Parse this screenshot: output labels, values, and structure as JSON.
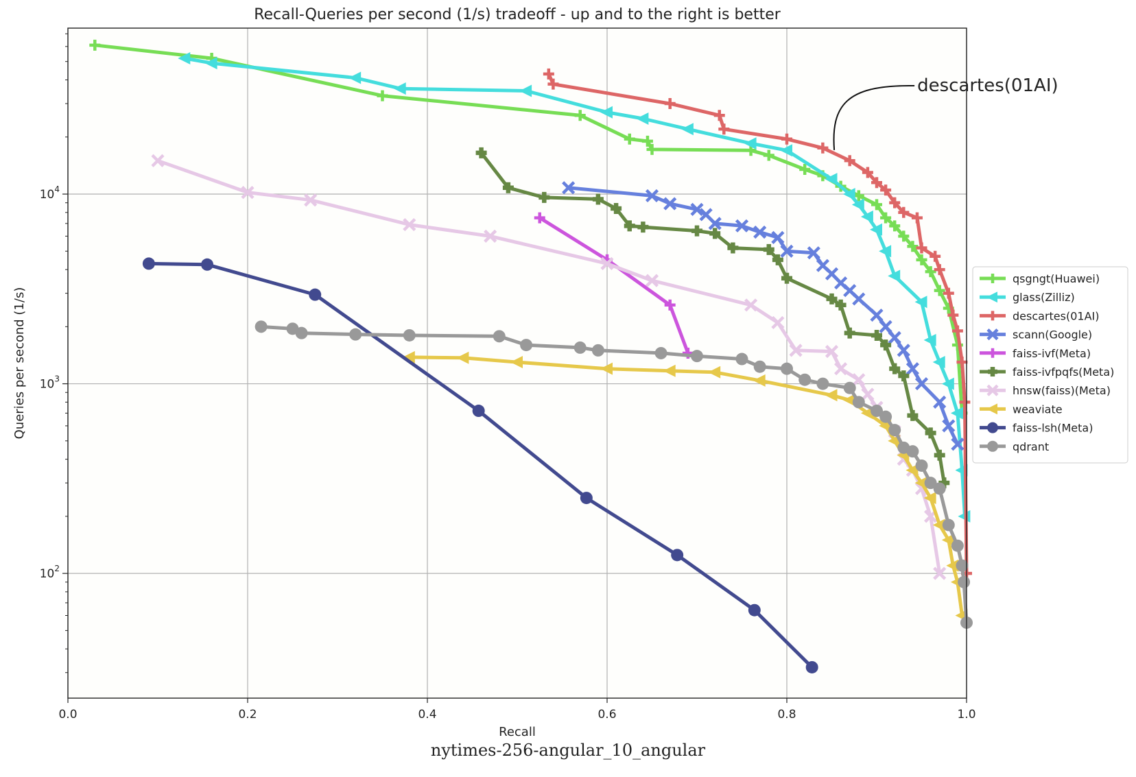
{
  "caption": "nytimes-256-angular_10_angular",
  "chart_data": {
    "type": "line",
    "title": "Recall-Queries per second (1/s) tradeoff - up and to the right is better",
    "xlabel": "Recall",
    "ylabel": "Queries per second (1/s)",
    "xlim": [
      0.0,
      1.0
    ],
    "ylim": [
      22,
      75000
    ],
    "yscale": "log",
    "grid": true,
    "legend_position": "right",
    "x_ticks": [
      {
        "value": 0.0,
        "label": "0.0"
      },
      {
        "value": 0.2,
        "label": "0.2"
      },
      {
        "value": 0.4,
        "label": "0.4"
      },
      {
        "value": 0.6,
        "label": "0.6"
      },
      {
        "value": 0.8,
        "label": "0.8"
      },
      {
        "value": 1.0,
        "label": "1.0"
      }
    ],
    "y_ticks": [
      {
        "value": 100,
        "base": "10",
        "exp": "2"
      },
      {
        "value": 1000,
        "base": "10",
        "exp": "3"
      },
      {
        "value": 10000,
        "base": "10",
        "exp": "4"
      }
    ],
    "annotation": {
      "text": "descartes(01AI)",
      "x": 0.852,
      "y": 16500
    },
    "series": [
      {
        "name": "qsgngt(Huawei)",
        "color": "#77dd55",
        "marker": "plus",
        "points": [
          [
            0.03,
            61000
          ],
          [
            0.16,
            52000
          ],
          [
            0.35,
            33000
          ],
          [
            0.57,
            26000
          ],
          [
            0.625,
            19500
          ],
          [
            0.645,
            19000
          ],
          [
            0.65,
            17200
          ],
          [
            0.76,
            17000
          ],
          [
            0.78,
            16000
          ],
          [
            0.82,
            13500
          ],
          [
            0.84,
            12500
          ],
          [
            0.86,
            11000
          ],
          [
            0.88,
            9800
          ],
          [
            0.9,
            8800
          ],
          [
            0.91,
            7500
          ],
          [
            0.92,
            6800
          ],
          [
            0.93,
            6000
          ],
          [
            0.94,
            5300
          ],
          [
            0.95,
            4500
          ],
          [
            0.96,
            3900
          ],
          [
            0.97,
            3100
          ],
          [
            0.98,
            2500
          ],
          [
            0.99,
            1600
          ],
          [
            0.995,
            700
          ]
        ]
      },
      {
        "name": "glass(Zilliz)",
        "color": "#44dddd",
        "marker": "triangle-left",
        "points": [
          [
            0.13,
            52000
          ],
          [
            0.16,
            49000
          ],
          [
            0.32,
            41000
          ],
          [
            0.37,
            36000
          ],
          [
            0.51,
            35000
          ],
          [
            0.6,
            27000
          ],
          [
            0.64,
            25000
          ],
          [
            0.69,
            22000
          ],
          [
            0.76,
            18500
          ],
          [
            0.8,
            17000
          ],
          [
            0.85,
            12000
          ],
          [
            0.87,
            10000
          ],
          [
            0.88,
            8800
          ],
          [
            0.89,
            7600
          ],
          [
            0.9,
            6500
          ],
          [
            0.91,
            5000
          ],
          [
            0.92,
            3700
          ],
          [
            0.95,
            2700
          ],
          [
            0.96,
            1700
          ],
          [
            0.97,
            1300
          ],
          [
            0.98,
            1000
          ],
          [
            0.99,
            700
          ],
          [
            0.995,
            350
          ],
          [
            0.998,
            200
          ]
        ]
      },
      {
        "name": "descartes(01AI)",
        "color": "#dd6666",
        "marker": "plus",
        "points": [
          [
            0.535,
            43000
          ],
          [
            0.54,
            38000
          ],
          [
            0.67,
            30000
          ],
          [
            0.725,
            26000
          ],
          [
            0.73,
            22000
          ],
          [
            0.8,
            19500
          ],
          [
            0.84,
            17500
          ],
          [
            0.87,
            15000
          ],
          [
            0.89,
            13000
          ],
          [
            0.9,
            11500
          ],
          [
            0.91,
            10500
          ],
          [
            0.92,
            9000
          ],
          [
            0.93,
            8000
          ],
          [
            0.945,
            7500
          ],
          [
            0.95,
            5200
          ],
          [
            0.965,
            4700
          ],
          [
            0.97,
            4000
          ],
          [
            0.98,
            3000
          ],
          [
            0.985,
            2300
          ],
          [
            0.99,
            1900
          ],
          [
            0.995,
            1300
          ],
          [
            0.998,
            800
          ],
          [
            1.0,
            100
          ]
        ]
      },
      {
        "name": "scann(Google)",
        "color": "#6680dd",
        "marker": "x",
        "points": [
          [
            0.557,
            10800
          ],
          [
            0.65,
            9800
          ],
          [
            0.67,
            8900
          ],
          [
            0.7,
            8300
          ],
          [
            0.71,
            7800
          ],
          [
            0.72,
            7000
          ],
          [
            0.75,
            6800
          ],
          [
            0.77,
            6300
          ],
          [
            0.79,
            5900
          ],
          [
            0.8,
            5000
          ],
          [
            0.83,
            4900
          ],
          [
            0.84,
            4200
          ],
          [
            0.85,
            3800
          ],
          [
            0.86,
            3400
          ],
          [
            0.87,
            3100
          ],
          [
            0.88,
            2800
          ],
          [
            0.9,
            2300
          ],
          [
            0.91,
            2000
          ],
          [
            0.92,
            1750
          ],
          [
            0.93,
            1500
          ],
          [
            0.94,
            1200
          ],
          [
            0.95,
            1000
          ],
          [
            0.97,
            800
          ],
          [
            0.98,
            600
          ],
          [
            0.99,
            480
          ]
        ]
      },
      {
        "name": "faiss-ivf(Meta)",
        "color": "#cc55dd",
        "marker": "plus",
        "points": [
          [
            0.525,
            7500
          ],
          [
            0.6,
            4500
          ],
          [
            0.67,
            2600
          ],
          [
            0.69,
            1450
          ]
        ]
      },
      {
        "name": "faiss-ivfpqfs(Meta)",
        "color": "#668844",
        "marker": "plus-heavy",
        "points": [
          [
            0.46,
            16500
          ],
          [
            0.49,
            10800
          ],
          [
            0.53,
            9600
          ],
          [
            0.59,
            9400
          ],
          [
            0.61,
            8400
          ],
          [
            0.625,
            6800
          ],
          [
            0.64,
            6700
          ],
          [
            0.7,
            6400
          ],
          [
            0.72,
            6200
          ],
          [
            0.74,
            5200
          ],
          [
            0.78,
            5100
          ],
          [
            0.79,
            4500
          ],
          [
            0.8,
            3600
          ],
          [
            0.85,
            2800
          ],
          [
            0.86,
            2600
          ],
          [
            0.87,
            1850
          ],
          [
            0.9,
            1800
          ],
          [
            0.91,
            1600
          ],
          [
            0.92,
            1200
          ],
          [
            0.93,
            1100
          ],
          [
            0.94,
            680
          ],
          [
            0.96,
            550
          ],
          [
            0.97,
            420
          ],
          [
            0.975,
            300
          ]
        ]
      },
      {
        "name": "hnsw(faiss)(Meta)",
        "color": "#e6c8e6",
        "marker": "x",
        "points": [
          [
            0.1,
            15000
          ],
          [
            0.2,
            10200
          ],
          [
            0.27,
            9300
          ],
          [
            0.38,
            6900
          ],
          [
            0.47,
            6000
          ],
          [
            0.6,
            4300
          ],
          [
            0.65,
            3500
          ],
          [
            0.76,
            2600
          ],
          [
            0.79,
            2100
          ],
          [
            0.81,
            1500
          ],
          [
            0.85,
            1480
          ],
          [
            0.86,
            1200
          ],
          [
            0.88,
            1050
          ],
          [
            0.89,
            880
          ],
          [
            0.9,
            750
          ],
          [
            0.92,
            560
          ],
          [
            0.93,
            400
          ],
          [
            0.94,
            350
          ],
          [
            0.95,
            280
          ],
          [
            0.96,
            200
          ],
          [
            0.97,
            100
          ]
        ]
      },
      {
        "name": "weaviate",
        "color": "#e6c84a",
        "marker": "triangle-left",
        "points": [
          [
            0.38,
            1380
          ],
          [
            0.44,
            1370
          ],
          [
            0.5,
            1300
          ],
          [
            0.6,
            1200
          ],
          [
            0.67,
            1170
          ],
          [
            0.72,
            1150
          ],
          [
            0.77,
            1040
          ],
          [
            0.85,
            870
          ],
          [
            0.87,
            820
          ],
          [
            0.89,
            700
          ],
          [
            0.91,
            600
          ],
          [
            0.92,
            500
          ],
          [
            0.93,
            420
          ],
          [
            0.94,
            350
          ],
          [
            0.95,
            300
          ],
          [
            0.96,
            250
          ],
          [
            0.97,
            180
          ],
          [
            0.98,
            150
          ],
          [
            0.985,
            110
          ],
          [
            0.99,
            90
          ],
          [
            0.995,
            60
          ]
        ]
      },
      {
        "name": "faiss-lsh(Meta)",
        "color": "#424a8f",
        "marker": "circle",
        "points": [
          [
            0.09,
            4300
          ],
          [
            0.155,
            4250
          ],
          [
            0.275,
            2950
          ],
          [
            0.457,
            720
          ],
          [
            0.577,
            250
          ],
          [
            0.678,
            125
          ],
          [
            0.764,
            64
          ],
          [
            0.828,
            32
          ]
        ]
      },
      {
        "name": "qdrant",
        "color": "#999999",
        "marker": "circle",
        "points": [
          [
            0.215,
            2000
          ],
          [
            0.25,
            1950
          ],
          [
            0.26,
            1850
          ],
          [
            0.32,
            1820
          ],
          [
            0.38,
            1800
          ],
          [
            0.48,
            1780
          ],
          [
            0.51,
            1600
          ],
          [
            0.57,
            1550
          ],
          [
            0.59,
            1500
          ],
          [
            0.66,
            1450
          ],
          [
            0.7,
            1400
          ],
          [
            0.75,
            1350
          ],
          [
            0.77,
            1230
          ],
          [
            0.8,
            1200
          ],
          [
            0.82,
            1050
          ],
          [
            0.84,
            1000
          ],
          [
            0.87,
            950
          ],
          [
            0.88,
            800
          ],
          [
            0.9,
            720
          ],
          [
            0.91,
            670
          ],
          [
            0.92,
            570
          ],
          [
            0.93,
            460
          ],
          [
            0.94,
            440
          ],
          [
            0.95,
            370
          ],
          [
            0.96,
            300
          ],
          [
            0.97,
            280
          ],
          [
            0.98,
            180
          ],
          [
            0.99,
            140
          ],
          [
            0.995,
            110
          ],
          [
            0.997,
            90
          ],
          [
            1.0,
            55
          ]
        ]
      }
    ]
  }
}
